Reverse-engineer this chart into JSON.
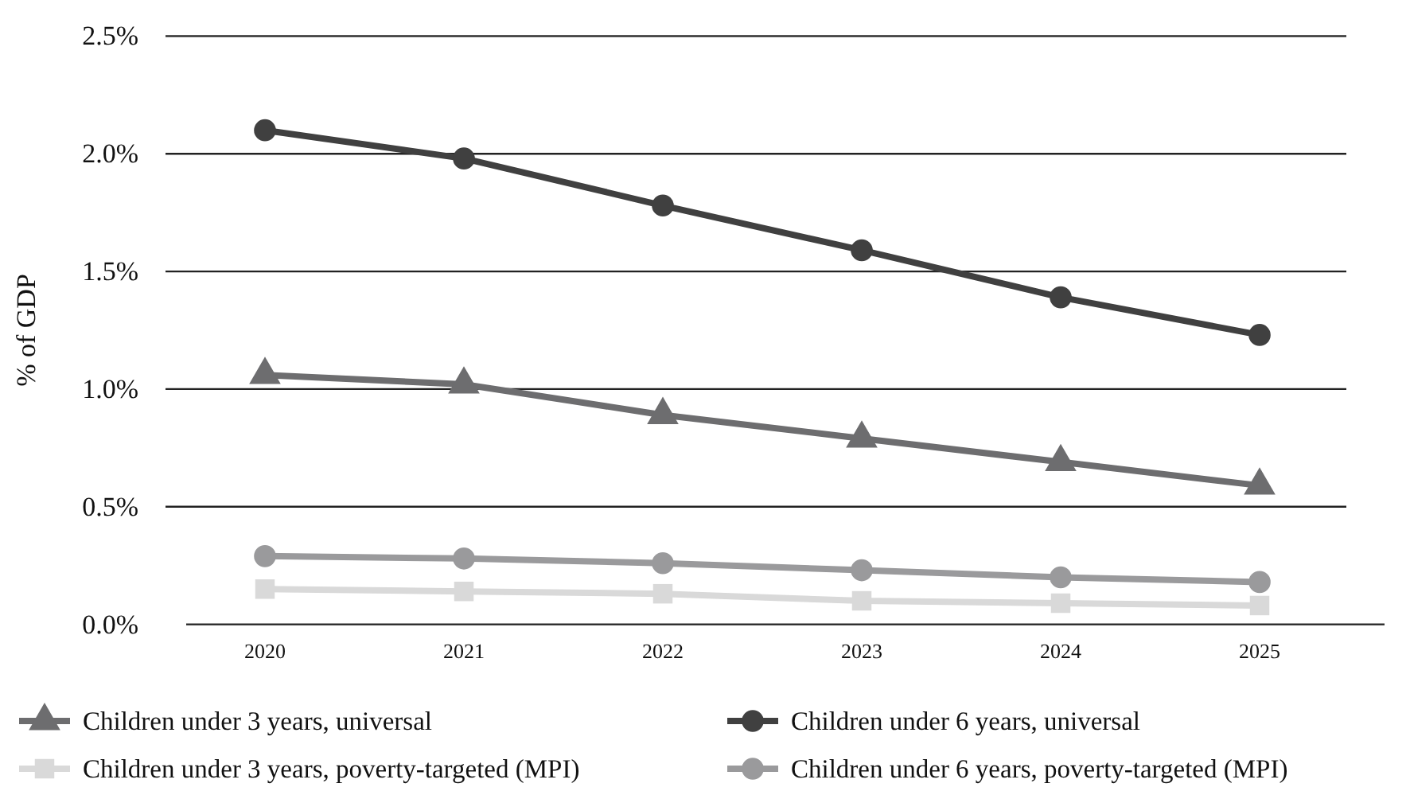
{
  "chart_data": {
    "type": "line",
    "ylabel": "% of GDP",
    "categories": [
      "2020",
      "2021",
      "2022",
      "2023",
      "2024",
      "2025"
    ],
    "series": [
      {
        "name": "Children under 3 years, universal",
        "color": "#6d6d6f",
        "marker": "triangle",
        "values": [
          1.06,
          1.02,
          0.89,
          0.79,
          0.69,
          0.59
        ]
      },
      {
        "name": "Children under 6 years, universal",
        "color": "#404040",
        "marker": "circle",
        "values": [
          2.1,
          1.98,
          1.78,
          1.59,
          1.39,
          1.23
        ]
      },
      {
        "name": "Children under 3 years, poverty-targeted (MPI)",
        "color": "#d9d9d9",
        "marker": "square",
        "values": [
          0.15,
          0.14,
          0.13,
          0.1,
          0.09,
          0.08
        ]
      },
      {
        "name": "Children under 6 years, poverty-targeted (MPI)",
        "color": "#9a9a9c",
        "marker": "circle",
        "values": [
          0.29,
          0.28,
          0.26,
          0.23,
          0.2,
          0.18
        ]
      }
    ],
    "ylim": [
      0,
      2.5
    ],
    "yticks": [
      {
        "value": 0,
        "label": "0.0%"
      },
      {
        "value": 0.5,
        "label": "0.5%"
      },
      {
        "value": 1,
        "label": "1.0%"
      },
      {
        "value": 1.5,
        "label": "1.5%"
      },
      {
        "value": 2,
        "label": "2.0%"
      },
      {
        "value": 2.5,
        "label": "2.5%"
      }
    ],
    "grid": "y",
    "legend": "bottom",
    "line_style": "solid"
  }
}
